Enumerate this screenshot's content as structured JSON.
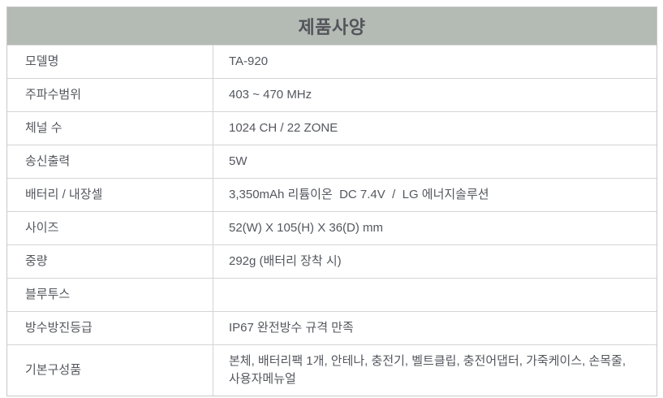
{
  "table": {
    "title": "제품사양",
    "colors": {
      "header_bg": "#b4bab4",
      "title_text": "#53555a",
      "body_text": "#54575e",
      "border": "#d4d4d4"
    },
    "rows": [
      {
        "label": "모델명",
        "value": "TA-920"
      },
      {
        "label": "주파수범위",
        "value": "403 ~ 470 MHz"
      },
      {
        "label": "체널 수",
        "value": "1024 CH / 22 ZONE"
      },
      {
        "label": "송신출력",
        "value": "5W"
      },
      {
        "label": "배터리 / 내장셀",
        "value": "3,350mAh 리튬이온  DC 7.4V  /  LG 에너지솔루션"
      },
      {
        "label": "사이즈",
        "value": "52(W) X 105(H) X 36(D) mm"
      },
      {
        "label": "중량",
        "value": "292g (배터리 장착 시)"
      },
      {
        "label": "블루투스",
        "value": ""
      },
      {
        "label": "방수방진등급",
        "value": "IP67 완전방수 규격 만족"
      },
      {
        "label": "기본구성품",
        "value": "본체, 배터리팩 1개, 안테나, 충전기, 벨트클립, 충전어댑터, 가죽케이스, 손목줄,\n사용자메뉴얼"
      }
    ]
  }
}
